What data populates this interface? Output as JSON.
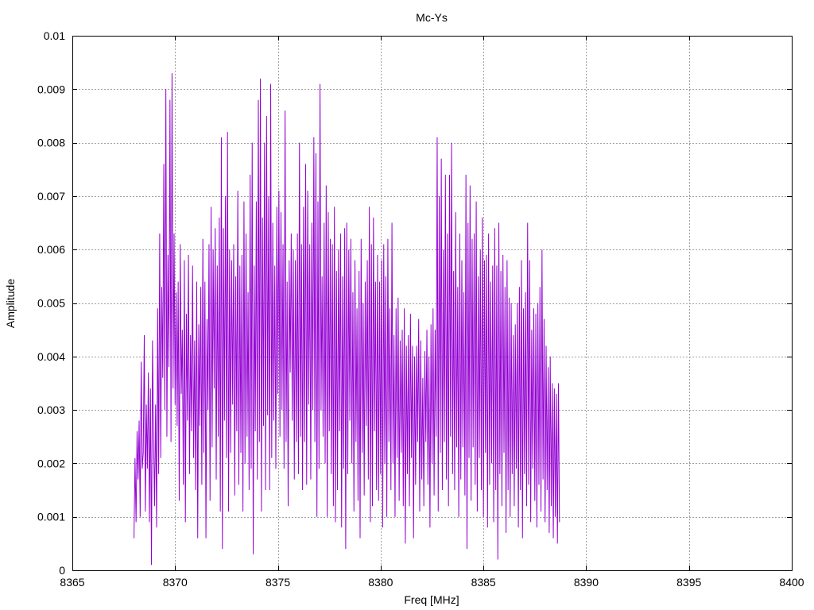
{
  "chart_data": {
    "type": "line",
    "title": "Mc-Ys",
    "xlabel": "Freq [MHz]",
    "ylabel": "Amplitude",
    "xlim": [
      8365,
      8400
    ],
    "ylim": [
      0,
      0.01
    ],
    "grid": true,
    "x_ticks": [
      "8365",
      "8370",
      "8375",
      "8380",
      "8385",
      "8390",
      "8395",
      "8400"
    ],
    "y_ticks": [
      "0",
      "0.001",
      "0.002",
      "0.003",
      "0.004",
      "0.005",
      "0.006",
      "0.007",
      "0.008",
      "0.009",
      "0.01"
    ],
    "series": [
      {
        "color": "#9400d3",
        "x_start": 8368.0,
        "x_step": 0.05,
        "values": [
          0.0006,
          0.0021,
          0.0009,
          0.0026,
          0.0017,
          0.0028,
          0.001,
          0.0039,
          0.0019,
          0.0022,
          0.0044,
          0.0011,
          0.0031,
          0.0019,
          0.0037,
          0.0009,
          0.0034,
          0.0001,
          0.0043,
          0.0025,
          0.0012,
          0.0031,
          0.0008,
          0.0049,
          0.0018,
          0.0063,
          0.0021,
          0.0053,
          0.0036,
          0.0076,
          0.003,
          0.009,
          0.0025,
          0.0059,
          0.0038,
          0.0088,
          0.0024,
          0.0093,
          0.0034,
          0.0063,
          0.0031,
          0.0052,
          0.0027,
          0.0054,
          0.0013,
          0.0061,
          0.0033,
          0.0045,
          0.0016,
          0.0058,
          0.0009,
          0.0048,
          0.0028,
          0.0059,
          0.0018,
          0.0044,
          0.0026,
          0.0057,
          0.0021,
          0.0043,
          0.0015,
          0.0054,
          0.0006,
          0.0046,
          0.0027,
          0.0053,
          0.0016,
          0.0062,
          0.0022,
          0.0054,
          0.0006,
          0.0047,
          0.003,
          0.0061,
          0.0013,
          0.0068,
          0.0023,
          0.006,
          0.0034,
          0.0064,
          0.0017,
          0.0057,
          0.0025,
          0.0066,
          0.0011,
          0.0081,
          0.0004,
          0.0064,
          0.0028,
          0.007,
          0.0021,
          0.0082,
          0.0011,
          0.006,
          0.0022,
          0.0058,
          0.0031,
          0.0061,
          0.0014,
          0.0055,
          0.0026,
          0.0071,
          0.0016,
          0.0057,
          0.0022,
          0.0059,
          0.0011,
          0.0069,
          0.002,
          0.0063,
          0.0025,
          0.0052,
          0.0015,
          0.0074,
          0.0019,
          0.008,
          0.0003,
          0.0057,
          0.0026,
          0.0069,
          0.0017,
          0.0088,
          0.0024,
          0.0092,
          0.0011,
          0.0066,
          0.0027,
          0.008,
          0.0015,
          0.0085,
          0.0029,
          0.007,
          0.0015,
          0.0091,
          0.0021,
          0.0065,
          0.0028,
          0.0057,
          0.0019,
          0.0068,
          0.0033,
          0.0071,
          0.0025,
          0.0067,
          0.003,
          0.0061,
          0.0019,
          0.0086,
          0.0024,
          0.0054,
          0.0012,
          0.0058,
          0.0037,
          0.0063,
          0.0028,
          0.006,
          0.0017,
          0.0058,
          0.0024,
          0.0063,
          0.0018,
          0.008,
          0.0025,
          0.0061,
          0.0015,
          0.0068,
          0.0024,
          0.0076,
          0.0016,
          0.0071,
          0.0031,
          0.0061,
          0.0017,
          0.0065,
          0.003,
          0.0081,
          0.0024,
          0.0078,
          0.001,
          0.0069,
          0.0019,
          0.0091,
          0.003,
          0.0055,
          0.0025,
          0.0065,
          0.002,
          0.0072,
          0.001,
          0.0067,
          0.0026,
          0.0062,
          0.0018,
          0.0061,
          0.0012,
          0.0068,
          0.0009,
          0.0056,
          0.0015,
          0.006,
          0.0026,
          0.0063,
          0.0008,
          0.0055,
          0.0019,
          0.0064,
          0.0004,
          0.0065,
          0.0018,
          0.006,
          0.0028,
          0.0062,
          0.002,
          0.0052,
          0.0011,
          0.0058,
          0.0024,
          0.0049,
          0.0013,
          0.0056,
          0.0006,
          0.0062,
          0.0022,
          0.005,
          0.0014,
          0.0054,
          0.0027,
          0.0058,
          0.0017,
          0.0068,
          0.0009,
          0.0061,
          0.0012,
          0.0066,
          0.0026,
          0.0054,
          0.0015,
          0.0059,
          0.0013,
          0.0054,
          0.0018,
          0.0058,
          0.0008,
          0.0061,
          0.002,
          0.0055,
          0.001,
          0.0062,
          0.0024,
          0.0049,
          0.0015,
          0.0065,
          0.002,
          0.0044,
          0.001,
          0.0049,
          0.0021,
          0.0051,
          0.0013,
          0.0043,
          0.0022,
          0.0045,
          0.0012,
          0.0049,
          0.0005,
          0.0042,
          0.0018,
          0.0044,
          0.0012,
          0.0048,
          0.0021,
          0.0042,
          0.0006,
          0.004,
          0.0016,
          0.0042,
          0.0024,
          0.0047,
          0.0011,
          0.0043,
          0.0017,
          0.0036,
          0.0012,
          0.0041,
          0.0024,
          0.0045,
          0.0016,
          0.004,
          0.0008,
          0.0046,
          0.002,
          0.0049,
          0.0014,
          0.0045,
          0.0025,
          0.0081,
          0.0011,
          0.007,
          0.0022,
          0.0077,
          0.0015,
          0.006,
          0.0024,
          0.0074,
          0.0017,
          0.0063,
          0.0012,
          0.0074,
          0.0025,
          0.008,
          0.0018,
          0.0056,
          0.0015,
          0.0067,
          0.0023,
          0.0053,
          0.001,
          0.0063,
          0.0017,
          0.0058,
          0.0023,
          0.0052,
          0.0014,
          0.0074,
          0.0004,
          0.0065,
          0.0021,
          0.0072,
          0.0013,
          0.0062,
          0.0023,
          0.0063,
          0.0016,
          0.0069,
          0.0011,
          0.0055,
          0.0021,
          0.006,
          0.0015,
          0.0066,
          0.001,
          0.0058,
          0.0022,
          0.0059,
          0.0008,
          0.0063,
          0.0016,
          0.0054,
          0.002,
          0.0057,
          0.0009,
          0.0064,
          0.0015,
          0.0057,
          0.0002,
          0.0065,
          0.0018,
          0.0056,
          0.0012,
          0.0059,
          0.0022,
          0.0053,
          0.0007,
          0.0058,
          0.0015,
          0.0051,
          0.001,
          0.005,
          0.0018,
          0.0044,
          0.0012,
          0.0046,
          0.0019,
          0.005,
          0.0008,
          0.0053,
          0.0015,
          0.0058,
          0.0006,
          0.0049,
          0.0018,
          0.0052,
          0.0012,
          0.0065,
          0.0016,
          0.0058,
          0.0009,
          0.0045,
          0.0019,
          0.0049,
          0.0013,
          0.0048,
          0.0008,
          0.005,
          0.0016,
          0.0053,
          0.0011,
          0.006,
          0.0017,
          0.0047,
          0.0009,
          0.0042,
          0.0015,
          0.0038,
          0.0007,
          0.004,
          0.0012,
          0.0035,
          0.0006,
          0.0034,
          0.001,
          0.0033,
          0.0005,
          0.0035,
          0.0009
        ]
      }
    ]
  }
}
